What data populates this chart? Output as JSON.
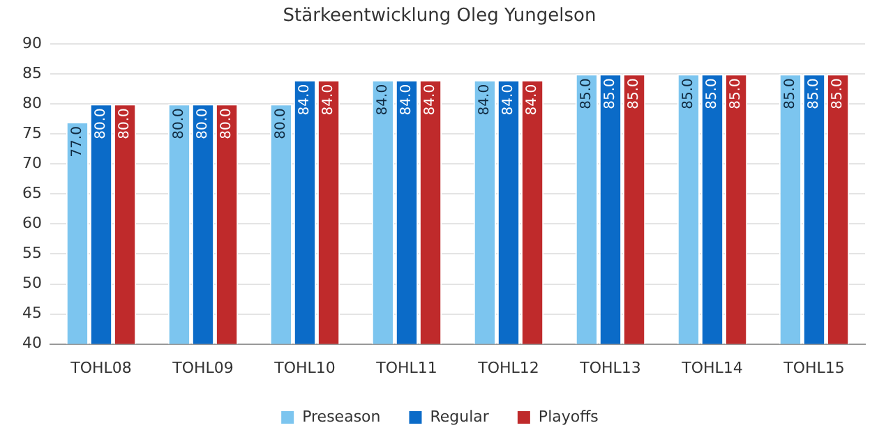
{
  "chart_data": {
    "type": "bar",
    "title": "Stärkeentwicklung Oleg Yungelson",
    "categories": [
      "TOHL08",
      "TOHL09",
      "TOHL10",
      "TOHL11",
      "TOHL12",
      "TOHL13",
      "TOHL14",
      "TOHL15"
    ],
    "series": [
      {
        "name": "Preseason",
        "color": "#7cc5ef",
        "values": [
          77,
          80,
          80,
          84,
          84,
          85,
          85,
          85
        ],
        "value_labels": [
          "77.0",
          "80.0",
          "80.0",
          "84.0",
          "84.0",
          "85.0",
          "85.0",
          "85.0"
        ]
      },
      {
        "name": "Regular",
        "color": "#0b6bc8",
        "values": [
          80,
          80,
          84,
          84,
          84,
          85,
          85,
          85
        ],
        "value_labels": [
          "80.0",
          "80.0",
          "84.0",
          "84.0",
          "84.0",
          "85.0",
          "85.0",
          "85.0"
        ]
      },
      {
        "name": "Playoffs",
        "color": "#bf2a2b",
        "values": [
          80,
          80,
          84,
          84,
          84,
          85,
          85,
          85
        ],
        "value_labels": [
          "80.0",
          "80.0",
          "84.0",
          "84.0",
          "84.0",
          "85.0",
          "85.0",
          "85.0"
        ]
      }
    ],
    "ylim": [
      40,
      90
    ],
    "yticks": [
      40,
      45,
      50,
      55,
      60,
      65,
      70,
      75,
      80,
      85,
      90
    ],
    "grid": "y",
    "legend": "bottom"
  }
}
